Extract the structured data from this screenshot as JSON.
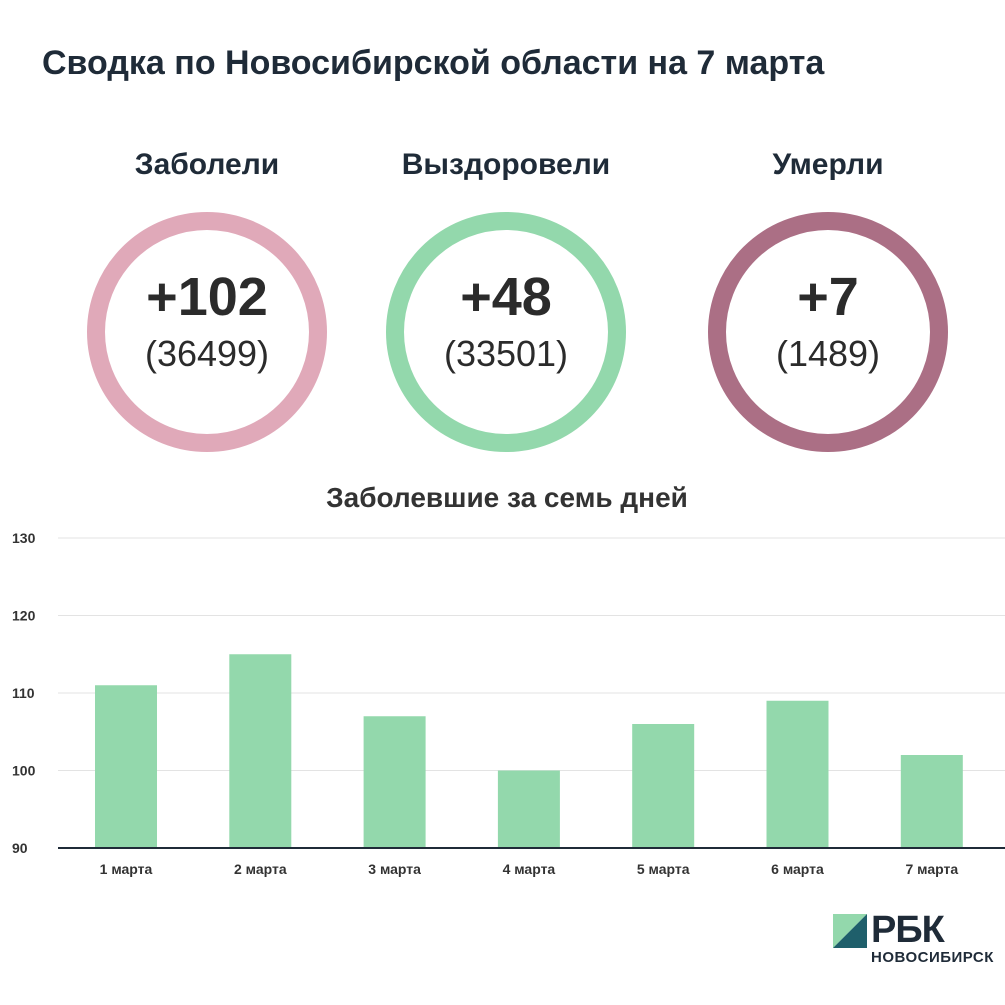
{
  "title": "Сводка по Новосибирской области на 7 марта",
  "colors": {
    "infected": "#e0a9b9",
    "recovered": "#93d8ac",
    "deaths": "#ab6f85",
    "bar": "#93d8ac",
    "grid": "#e3e3e3",
    "axis": "#1f2b38"
  },
  "stats": [
    {
      "label": "Заболели",
      "delta": "+102",
      "total": "(36499)"
    },
    {
      "label": "Выздоровели",
      "delta": "+48",
      "total": "(33501)"
    },
    {
      "label": "Умерли",
      "delta": "+7",
      "total": "(1489)"
    }
  ],
  "chart_data": {
    "type": "bar",
    "title": "Заболевшие за семь дней",
    "categories": [
      "1 марта",
      "2 марта",
      "3 марта",
      "4 марта",
      "5 марта",
      "6 марта",
      "7 марта"
    ],
    "values": [
      111,
      115,
      107,
      100,
      106,
      109,
      102
    ],
    "ylim": [
      90,
      130
    ],
    "yticks": [
      90,
      100,
      110,
      120,
      130
    ],
    "xlabel": "",
    "ylabel": "",
    "grid": true
  },
  "logo": {
    "name": "РБК",
    "region": "НОВОСИБИРСК"
  }
}
